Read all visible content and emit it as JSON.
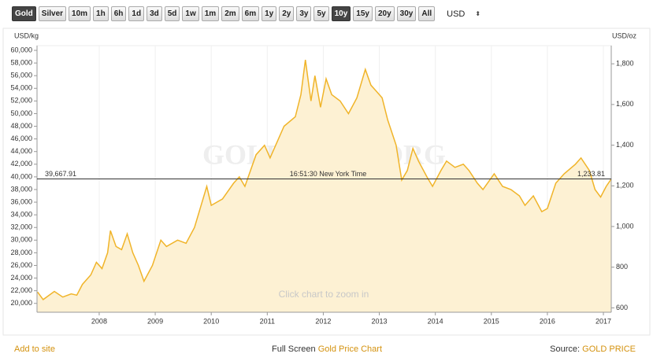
{
  "toolbar": {
    "buttons": [
      {
        "label": "Gold",
        "selected": true
      },
      {
        "label": "Silver",
        "selected": false
      },
      {
        "label": "10m",
        "selected": false
      },
      {
        "label": "1h",
        "selected": false
      },
      {
        "label": "6h",
        "selected": false
      },
      {
        "label": "1d",
        "selected": false
      },
      {
        "label": "3d",
        "selected": false
      },
      {
        "label": "5d",
        "selected": false
      },
      {
        "label": "1w",
        "selected": false
      },
      {
        "label": "1m",
        "selected": false
      },
      {
        "label": "2m",
        "selected": false
      },
      {
        "label": "6m",
        "selected": false
      },
      {
        "label": "1y",
        "selected": false
      },
      {
        "label": "2y",
        "selected": false
      },
      {
        "label": "3y",
        "selected": false
      },
      {
        "label": "5y",
        "selected": false
      },
      {
        "label": "10y",
        "selected": true
      },
      {
        "label": "15y",
        "selected": false
      },
      {
        "label": "20y",
        "selected": false
      },
      {
        "label": "30y",
        "selected": false
      },
      {
        "label": "All",
        "selected": false
      }
    ],
    "currency": "USD"
  },
  "chart_data": {
    "type": "area",
    "ylabel": "USD/kg",
    "y2label": "USD/oz",
    "watermark": "GOLDPRICE.ORG",
    "annotation": "Click chart to zoom in",
    "color": "#f0b429",
    "fill": "#fdf1d3",
    "grid": true,
    "x": [
      2006.9,
      2007.0,
      2007.2,
      2007.35,
      2007.5,
      2007.6,
      2007.7,
      2007.85,
      2007.95,
      2008.05,
      2008.15,
      2008.2,
      2008.3,
      2008.4,
      2008.5,
      2008.6,
      2008.7,
      2008.8,
      2008.95,
      2009.1,
      2009.2,
      2009.4,
      2009.55,
      2009.7,
      2009.92,
      2010.0,
      2010.2,
      2010.4,
      2010.5,
      2010.6,
      2010.8,
      2010.95,
      2011.05,
      2011.3,
      2011.5,
      2011.6,
      2011.68,
      2011.78,
      2011.85,
      2011.95,
      2012.05,
      2012.15,
      2012.3,
      2012.45,
      2012.6,
      2012.75,
      2012.85,
      2012.95,
      2013.05,
      2013.15,
      2013.3,
      2013.4,
      2013.5,
      2013.6,
      2013.7,
      2013.85,
      2013.95,
      2014.1,
      2014.2,
      2014.35,
      2014.5,
      2014.6,
      2014.75,
      2014.85,
      2015.05,
      2015.2,
      2015.35,
      2015.5,
      2015.6,
      2015.75,
      2015.9,
      2016.0,
      2016.15,
      2016.3,
      2016.5,
      2016.6,
      2016.75,
      2016.85,
      2016.95,
      2017.05,
      2017.14
    ],
    "values": [
      21800,
      20600,
      21900,
      21000,
      21500,
      21300,
      23000,
      24500,
      26500,
      25500,
      28000,
      31500,
      29000,
      28500,
      31000,
      28000,
      26000,
      23500,
      26000,
      30000,
      29000,
      30000,
      29500,
      32000,
      38500,
      35500,
      36500,
      39000,
      40000,
      38500,
      43500,
      45000,
      43000,
      48000,
      49500,
      53000,
      58500,
      52000,
      56000,
      51000,
      55500,
      53000,
      52000,
      50000,
      52500,
      57000,
      54500,
      53500,
      52500,
      49000,
      45000,
      39500,
      41000,
      44500,
      42500,
      40000,
      38500,
      41000,
      42500,
      41500,
      42000,
      41000,
      39000,
      38000,
      40500,
      38500,
      38000,
      37000,
      35500,
      37000,
      34500,
      35000,
      39000,
      40500,
      42000,
      43000,
      41000,
      38000,
      36800,
      38500,
      39668
    ],
    "xlim": [
      2006.89,
      2017.14
    ],
    "xticks": [
      2008,
      2009,
      2010,
      2011,
      2012,
      2013,
      2014,
      2015,
      2016,
      2017
    ],
    "ylim": [
      18600,
      60750
    ],
    "yticks": [
      {
        "value": 20000,
        "label": "20,000"
      },
      {
        "value": 22000,
        "label": "22,000"
      },
      {
        "value": 24000,
        "label": "24,000"
      },
      {
        "value": 26000,
        "label": "26,000"
      },
      {
        "value": 28000,
        "label": "28,000"
      },
      {
        "value": 30000,
        "label": "30,000"
      },
      {
        "value": 32000,
        "label": "32,000"
      },
      {
        "value": 34000,
        "label": "34,000"
      },
      {
        "value": 36000,
        "label": "36,000"
      },
      {
        "value": 38000,
        "label": "38,000"
      },
      {
        "value": 40000,
        "label": "40,000"
      },
      {
        "value": 42000,
        "label": "42,000"
      },
      {
        "value": 44000,
        "label": "44,000"
      },
      {
        "value": 46000,
        "label": "46,000"
      },
      {
        "value": 48000,
        "label": "48,000"
      },
      {
        "value": 50000,
        "label": "50,000"
      },
      {
        "value": 52000,
        "label": "52,000"
      },
      {
        "value": 54000,
        "label": "54,000"
      },
      {
        "value": 56000,
        "label": "56,000"
      },
      {
        "value": 58000,
        "label": "58,000"
      },
      {
        "value": 60000,
        "label": "60,000"
      }
    ],
    "y2lim": [
      578.5,
      1889.5
    ],
    "y2ticks": [
      600,
      800,
      {
        "value": 1000,
        "label": "1,000"
      },
      {
        "value": 1200,
        "label": "1,200"
      },
      {
        "value": 1400,
        "label": "1,400"
      },
      {
        "value": 1600,
        "label": "1,600"
      },
      {
        "value": 1800,
        "label": "1,800"
      }
    ],
    "crosshair": {
      "value": 39667.91,
      "label": "39,667.91",
      "time": "16:51:30 New York Time",
      "value2": 1233.81,
      "label2": "1,233.81"
    }
  },
  "footer": {
    "left": "Add to site",
    "center_prefix": "Full Screen ",
    "center_link": "Gold Price Chart",
    "right_prefix": "Source: ",
    "right_link": "GOLD PRICE"
  }
}
